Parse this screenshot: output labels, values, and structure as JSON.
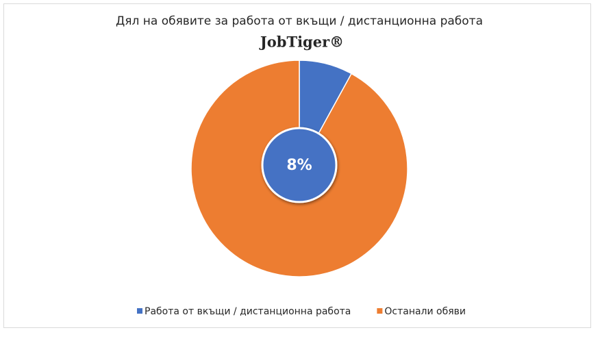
{
  "chart_data": {
    "type": "pie",
    "title": "Дял на обявите за работа от вкъщи / дистанционна работа",
    "logo": "JobTiger®",
    "categories": [
      "Работа от вкъщи / дистанционна работа",
      "Останали обяви"
    ],
    "values": [
      8,
      92
    ],
    "value_labels": [
      "8%",
      null
    ],
    "colors": [
      "#4472c4",
      "#ed7d31"
    ],
    "legend": "bottom"
  }
}
